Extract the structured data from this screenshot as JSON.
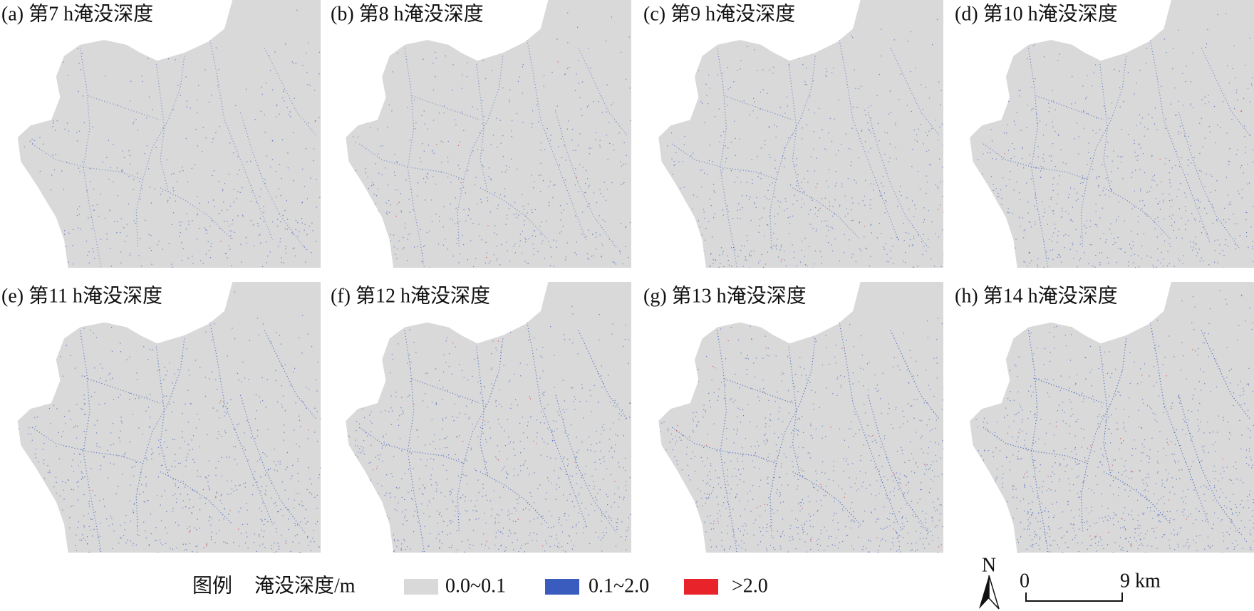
{
  "panels": [
    {
      "label": "(a) 第7 h淹没深度"
    },
    {
      "label": "(b) 第8 h淹没深度"
    },
    {
      "label": "(c) 第9 h淹没深度"
    },
    {
      "label": "(d) 第10 h淹没深度"
    },
    {
      "label": "(e) 第11 h淹没深度"
    },
    {
      "label": "(f) 第12 h淹没深度"
    },
    {
      "label": "(g) 第13 h淹没深度"
    },
    {
      "label": "(h) 第14 h淹没深度"
    }
  ],
  "legend": {
    "title": "图例",
    "subtitle": "淹没深度/m",
    "items": [
      {
        "label": "0.0~0.1",
        "color": "#d9d9d9"
      },
      {
        "label": "0.1~2.0",
        "color": "#3a5cbf"
      },
      {
        "label": ">2.0",
        "color": "#e8232a"
      }
    ]
  },
  "north": "N",
  "scale_bar": {
    "start": "0",
    "end": "9 km"
  }
}
